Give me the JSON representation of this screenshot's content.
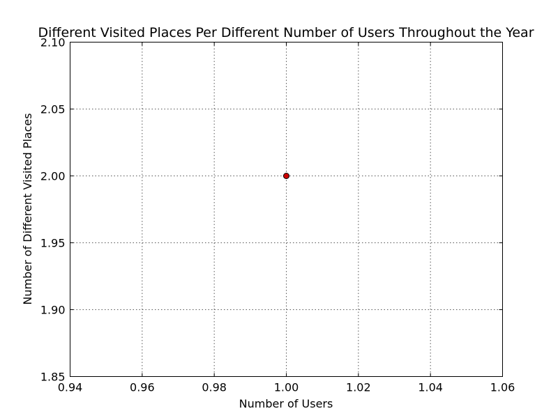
{
  "chart_data": {
    "type": "scatter",
    "title": "Different Visited Places Per Different Number of Users Throughout the Year",
    "xlabel": "Number of Users",
    "ylabel": "Number of Different Visited Places",
    "xlim": [
      0.94,
      1.06
    ],
    "ylim": [
      1.85,
      2.1
    ],
    "x_ticks": [
      "0.94",
      "0.96",
      "0.98",
      "1.00",
      "1.02",
      "1.04",
      "1.06"
    ],
    "y_ticks": [
      "1.85",
      "1.90",
      "1.95",
      "2.00",
      "2.05",
      "2.10"
    ],
    "grid": true,
    "legend": "none",
    "series": [
      {
        "x": [
          1.0
        ],
        "y": [
          2.0
        ],
        "color": "#cc0000"
      }
    ]
  }
}
